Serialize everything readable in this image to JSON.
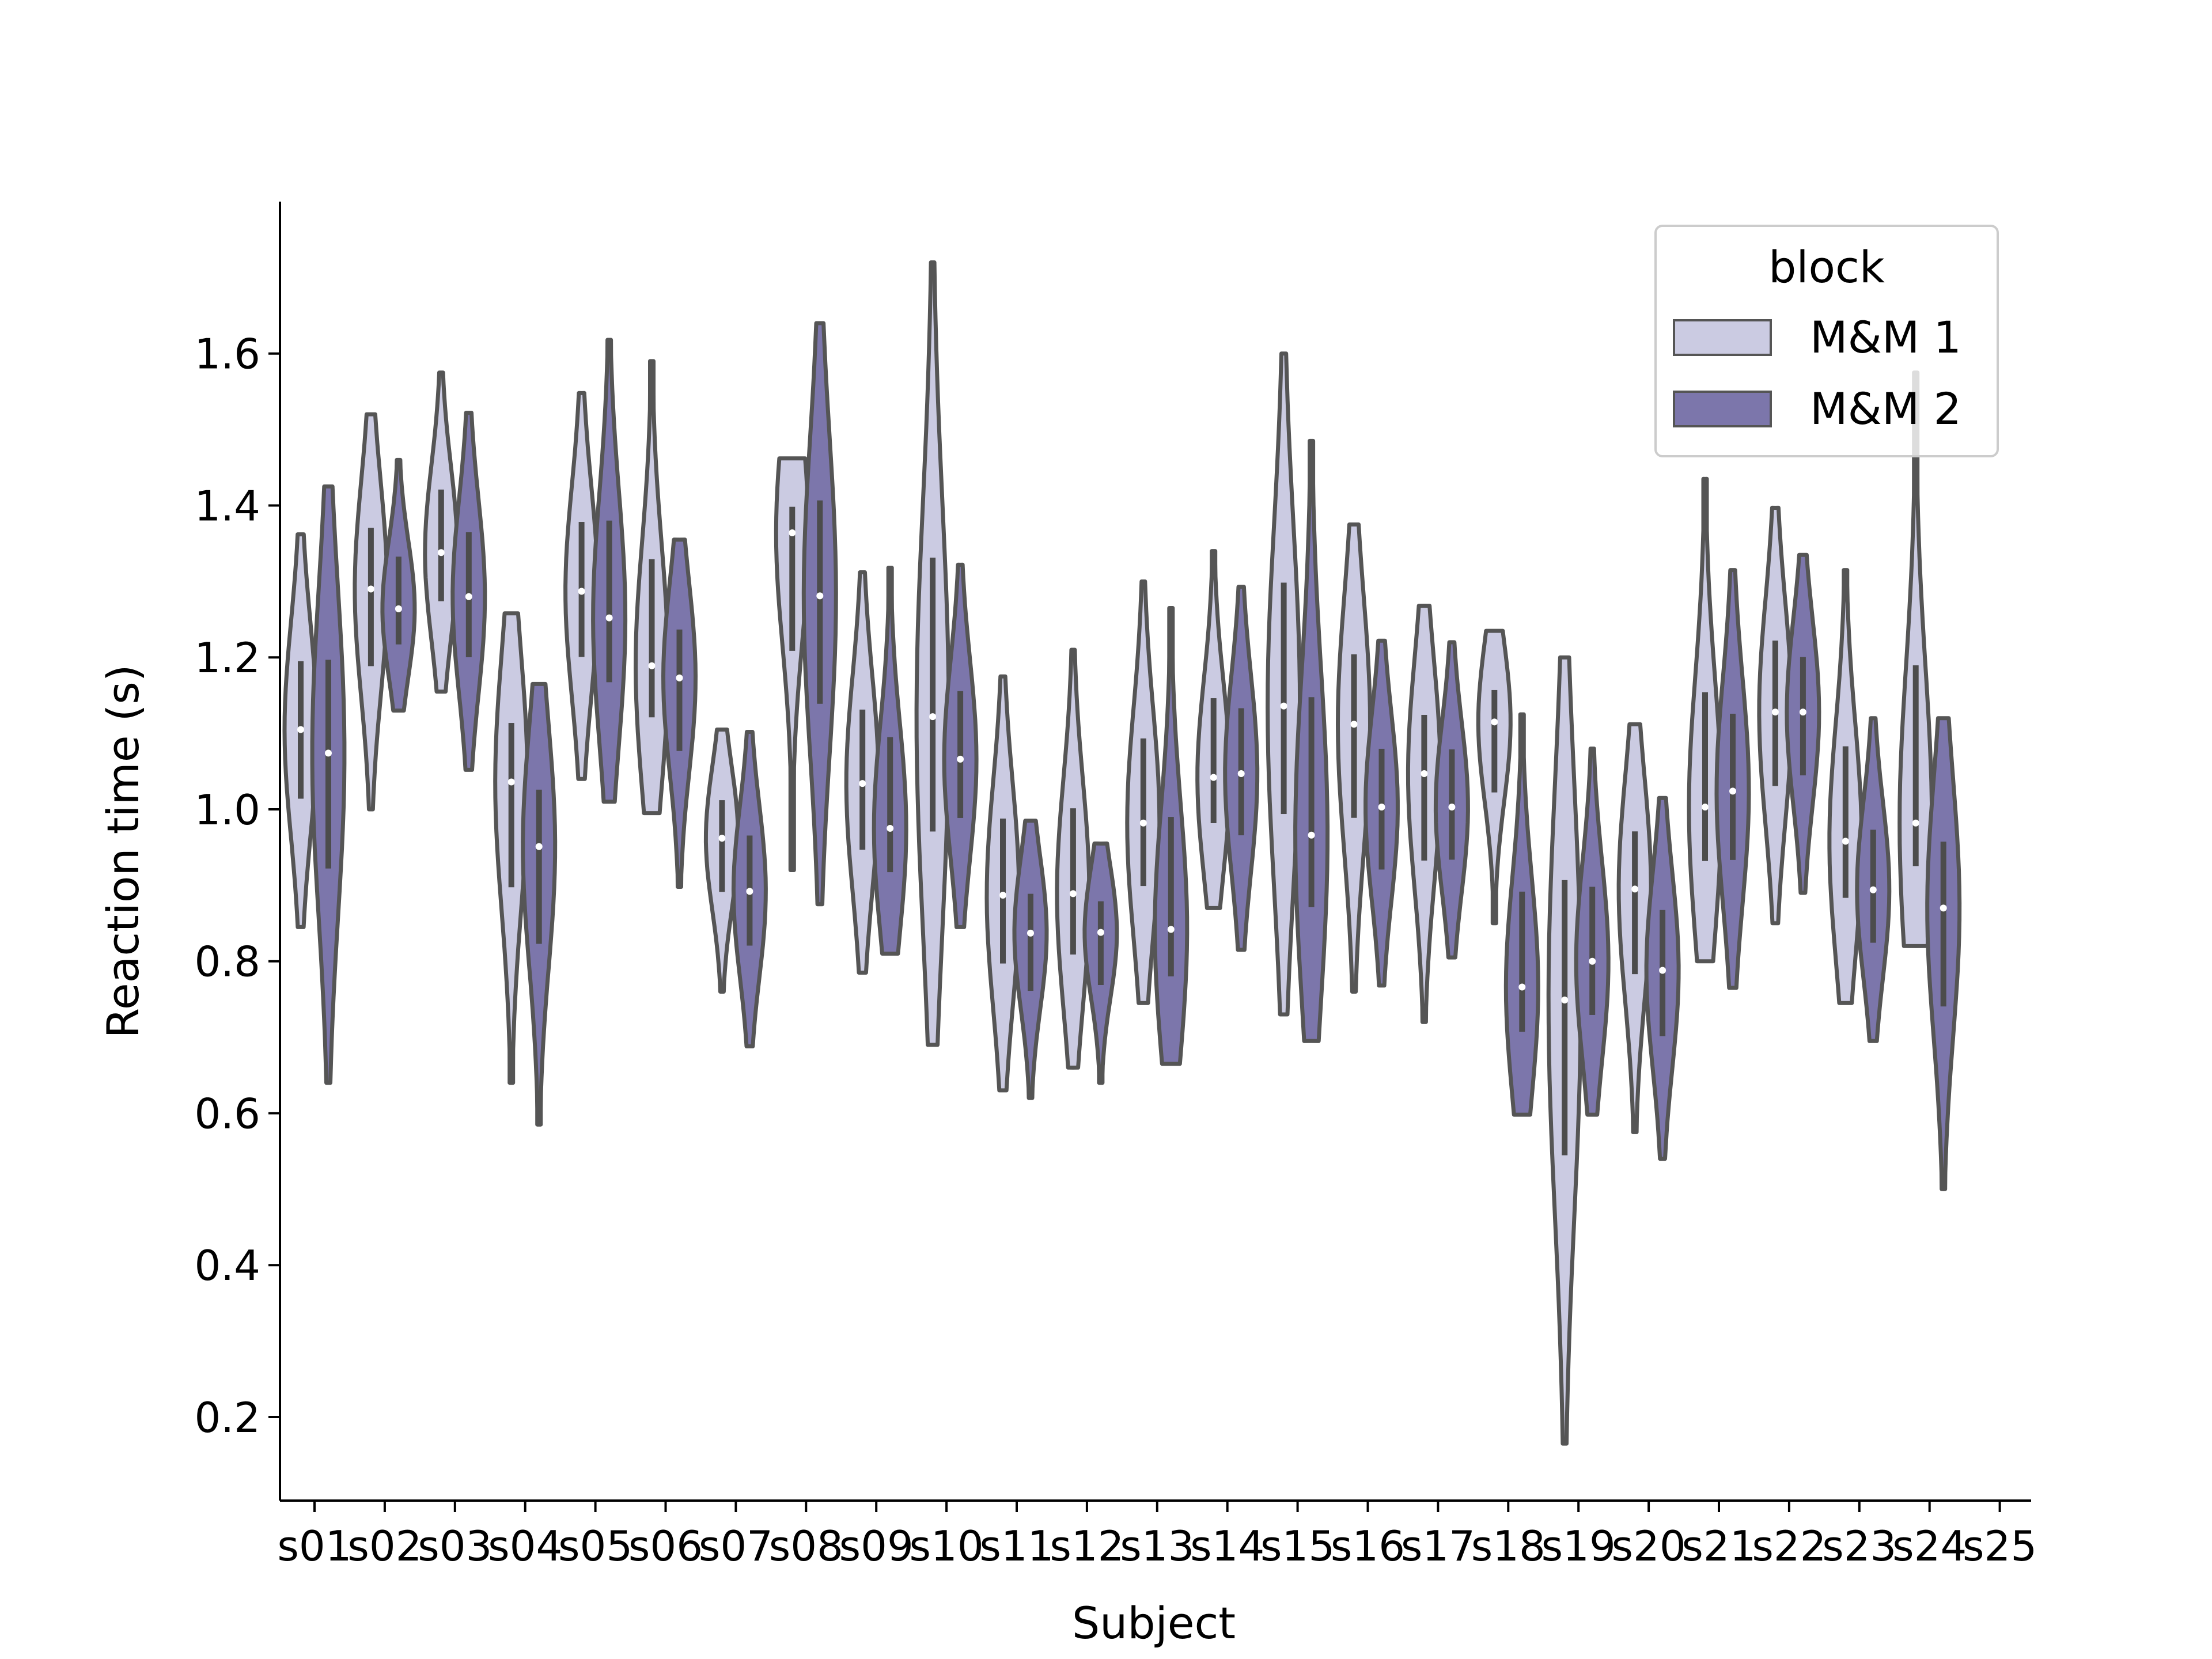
{
  "chart_data": {
    "type": "violin",
    "title": "",
    "xlabel": "Subject",
    "ylabel": "Reaction time (s)",
    "ylim": [
      0.09,
      1.8
    ],
    "yticks": [
      "0.2",
      "0.4",
      "0.6",
      "0.8",
      "1.0",
      "1.2",
      "1.4",
      "1.6"
    ],
    "categories": [
      "s01",
      "s02",
      "s03",
      "s04",
      "s05",
      "s06",
      "s07",
      "s08",
      "s09",
      "s10",
      "s11",
      "s12",
      "s13",
      "s14",
      "s15",
      "s16",
      "s17",
      "s18",
      "s19",
      "s20",
      "s21",
      "s22",
      "s23",
      "s24",
      "s25"
    ],
    "grid": false,
    "legend": {
      "title": "block",
      "placement": "top-right",
      "entries": [
        "M&M 1",
        "M&M 2"
      ]
    },
    "colors": {
      "M&M 1": "#cbcbe2",
      "M&M 2": "#7c76ab",
      "outline": "#555555",
      "median_dot": "#ffffff"
    },
    "series": [
      {
        "name": "M&M 1",
        "medians": [
          1.105,
          1.29,
          1.338,
          1.036,
          1.287,
          1.189,
          0.962,
          1.364,
          1.034,
          1.122,
          0.887,
          0.889,
          0.982,
          1.042,
          1.136,
          1.112,
          1.047,
          1.115,
          0.749,
          0.895,
          1.003,
          1.128,
          0.958,
          0.982,
          null
        ],
        "min": [
          0.845,
          1.0,
          1.155,
          0.64,
          1.04,
          0.995,
          0.76,
          0.92,
          0.785,
          0.69,
          0.63,
          0.66,
          0.745,
          0.87,
          0.73,
          0.76,
          0.72,
          0.85,
          0.165,
          0.575,
          0.8,
          0.85,
          0.745,
          0.82,
          null
        ],
        "max": [
          1.362,
          1.52,
          1.575,
          1.258,
          1.548,
          1.59,
          1.105,
          1.462,
          1.312,
          1.72,
          1.175,
          1.21,
          1.3,
          1.34,
          1.6,
          1.375,
          1.268,
          1.235,
          1.2,
          1.112,
          1.435,
          1.397,
          1.315,
          1.575,
          null
        ]
      },
      {
        "name": "M&M 2",
        "medians": [
          1.074,
          1.264,
          1.28,
          0.951,
          1.252,
          1.173,
          0.892,
          1.281,
          0.975,
          1.066,
          0.837,
          0.838,
          0.842,
          1.047,
          0.966,
          1.003,
          1.003,
          0.766,
          0.8,
          0.788,
          1.024,
          1.128,
          0.894,
          0.87,
          null
        ],
        "min": [
          0.64,
          1.13,
          1.052,
          0.585,
          1.01,
          0.898,
          0.688,
          0.875,
          0.81,
          0.845,
          0.62,
          0.64,
          0.665,
          0.815,
          0.695,
          0.768,
          0.805,
          0.598,
          0.598,
          0.54,
          0.765,
          0.89,
          0.695,
          0.5,
          null
        ],
        "max": [
          1.425,
          1.46,
          1.522,
          1.165,
          1.618,
          1.355,
          1.102,
          1.64,
          1.318,
          1.322,
          0.985,
          0.955,
          1.265,
          1.293,
          1.485,
          1.222,
          1.22,
          1.125,
          1.08,
          1.015,
          1.315,
          1.335,
          1.12,
          1.12,
          null
        ]
      }
    ]
  }
}
